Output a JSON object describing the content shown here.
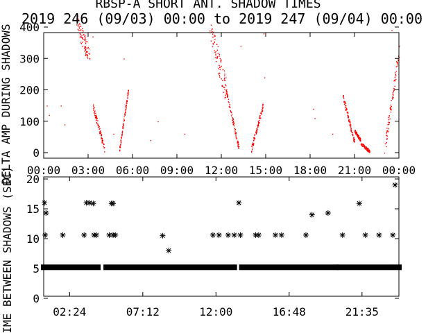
{
  "title": "RBSP-A SHORT ANT. SHADOW TIMES",
  "subtitle": "2019 246 (09/03) 00:00 to 2019 247 (09/04) 00:00",
  "colors": {
    "background": "#ffffff",
    "axes": "#000000",
    "top_points": "#ff0000",
    "bottom_points": "#000000"
  },
  "chart_data": [
    {
      "type": "scatter",
      "ylabel": "DELTA AMP DURING SHADOWS",
      "ylim": [
        0,
        400
      ],
      "yticks": [
        "0",
        "100",
        "200",
        "300",
        "400"
      ],
      "xlim_hours": [
        0,
        24
      ],
      "xticks": [
        "00:00",
        "03:00",
        "06:00",
        "09:00",
        "12:00",
        "15:00",
        "18:00",
        "21:00",
        "00:00"
      ],
      "marker_color": "red",
      "segments": [
        {
          "t0": 2.2,
          "t1": 3.1,
          "y0": 420,
          "y1": 300,
          "spread": 60
        },
        {
          "t0": 3.3,
          "t1": 4.1,
          "y0": 150,
          "y1": 10,
          "spread": 20
        },
        {
          "t0": 5.1,
          "t1": 5.7,
          "y0": 10,
          "y1": 200,
          "spread": 15
        },
        {
          "t0": 11.2,
          "t1": 12.3,
          "y0": 400,
          "y1": 200,
          "spread": 80
        },
        {
          "t0": 12.3,
          "t1": 13.2,
          "y0": 200,
          "y1": 10,
          "spread": 20
        },
        {
          "t0": 14.0,
          "t1": 14.8,
          "y0": 10,
          "y1": 150,
          "spread": 20
        },
        {
          "t0": 20.2,
          "t1": 21.0,
          "y0": 180,
          "y1": 30,
          "spread": 20
        },
        {
          "t0": 21.0,
          "t1": 21.4,
          "y0": 70,
          "y1": 40,
          "spread": 10
        },
        {
          "t0": 21.4,
          "t1": 22.0,
          "y0": 30,
          "y1": 5,
          "spread": 10
        },
        {
          "t0": 23.0,
          "t1": 24.0,
          "y0": 5,
          "y1": 330,
          "spread": 40
        }
      ],
      "scatter_points": [
        [
          0.2,
          150
        ],
        [
          0.35,
          120
        ],
        [
          1.15,
          150
        ],
        [
          1.4,
          90
        ],
        [
          3.3,
          370
        ],
        [
          4.7,
          60
        ],
        [
          5.4,
          300
        ],
        [
          7.2,
          40
        ],
        [
          7.7,
          100
        ],
        [
          9.5,
          60
        ],
        [
          13.3,
          340
        ],
        [
          14.85,
          380
        ],
        [
          14.9,
          240
        ],
        [
          18.2,
          140
        ],
        [
          18.3,
          110
        ],
        [
          19.5,
          60
        ],
        [
          23.5,
          390
        ]
      ]
    },
    {
      "type": "scatter",
      "ylabel": "TIME BETWEEN SHADOWS (SEC)",
      "ylim": [
        0,
        20
      ],
      "yticks": [
        "0",
        "5",
        "10",
        "15",
        "20"
      ],
      "xlim_hours": [
        0.7,
        24
      ],
      "xticks": [
        "02:24",
        "07:12",
        "12:00",
        "16:48",
        "21:35"
      ],
      "marker": "asterisk",
      "baseline": {
        "value": 5.2,
        "ranges": [
          [
            0.7,
            4.25
          ],
          [
            4.8,
            13.2
          ],
          [
            13.7,
            19.85
          ],
          [
            20.1,
            23.15
          ],
          [
            23.5,
            24.0
          ]
        ]
      },
      "points": [
        [
          0.75,
          16
        ],
        [
          0.85,
          14.3
        ],
        [
          0.8,
          10.6
        ],
        [
          1.95,
          10.6
        ],
        [
          3.35,
          10.6
        ],
        [
          3.5,
          16
        ],
        [
          3.7,
          16
        ],
        [
          3.95,
          15.9
        ],
        [
          4.0,
          10.6
        ],
        [
          4.15,
          10.6
        ],
        [
          5.0,
          10.6
        ],
        [
          5.15,
          15.9
        ],
        [
          5.25,
          15.9
        ],
        [
          5.25,
          10.6
        ],
        [
          5.4,
          10.6
        ],
        [
          8.5,
          10.5
        ],
        [
          8.9,
          8.0
        ],
        [
          11.8,
          10.6
        ],
        [
          12.2,
          10.6
        ],
        [
          12.8,
          10.6
        ],
        [
          13.2,
          10.6
        ],
        [
          13.5,
          16
        ],
        [
          13.6,
          10.6
        ],
        [
          14.6,
          10.6
        ],
        [
          14.8,
          10.6
        ],
        [
          15.9,
          10.6
        ],
        [
          16.3,
          10.6
        ],
        [
          17.9,
          10.6
        ],
        [
          18.3,
          14.0
        ],
        [
          19.35,
          14.3
        ],
        [
          20.3,
          10.6
        ],
        [
          21.4,
          15.9
        ],
        [
          21.8,
          10.6
        ],
        [
          22.7,
          10.6
        ],
        [
          23.6,
          10.6
        ],
        [
          23.75,
          19.0
        ]
      ]
    }
  ]
}
